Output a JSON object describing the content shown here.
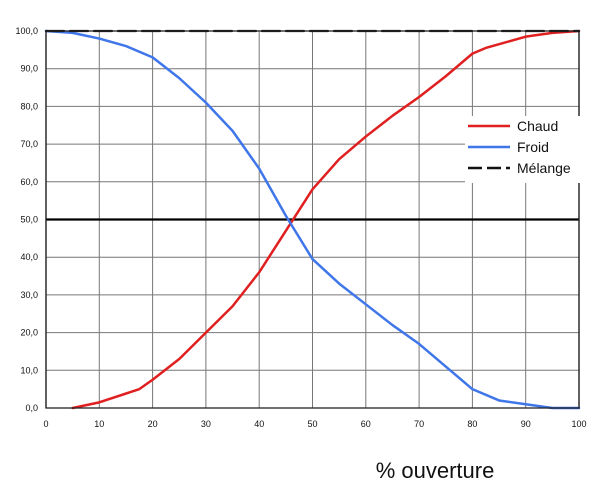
{
  "chart_data": {
    "type": "line",
    "title": "",
    "xlabel": "% ouverture",
    "ylabel": "",
    "xlim": [
      0,
      100
    ],
    "ylim": [
      0,
      100
    ],
    "x_ticks": [
      0,
      10,
      20,
      30,
      40,
      50,
      60,
      70,
      80,
      90,
      100
    ],
    "x_tick_labels": [
      "0",
      "10",
      "20",
      "30",
      "40",
      "50",
      "60",
      "70",
      "80",
      "90",
      "100"
    ],
    "y_ticks": [
      0,
      10,
      20,
      30,
      40,
      50,
      60,
      70,
      80,
      90,
      100
    ],
    "y_tick_labels": [
      "0,0",
      "10,0",
      "20,0",
      "30,0",
      "40,0",
      "50,0",
      "60,0",
      "70,0",
      "80,0",
      "90,0",
      "100,0"
    ],
    "grid": true,
    "emphasized_reference_lines": [
      50
    ],
    "legend_position": "right",
    "series": [
      {
        "name": "Chaud",
        "color": "#e02020",
        "line_style": "solid",
        "x": [
          5,
          10,
          17.5,
          20,
          25,
          30,
          35,
          40,
          45,
          50,
          55,
          60,
          65,
          70,
          75,
          80,
          82.5,
          85,
          90,
          95,
          100
        ],
        "y": [
          0,
          1.5,
          5,
          7.5,
          13,
          20,
          27,
          36,
          47,
          58,
          66,
          72,
          77.5,
          82.5,
          88,
          94,
          95.5,
          96.5,
          98.5,
          99.5,
          100
        ]
      },
      {
        "name": "Froid",
        "color": "#3f76ea",
        "line_style": "solid",
        "x": [
          0,
          5,
          10,
          15,
          20,
          25,
          30,
          35,
          40,
          45,
          50,
          55,
          60,
          65,
          70,
          75,
          80,
          85,
          90,
          95,
          100
        ],
        "y": [
          100,
          99.5,
          98,
          96,
          93,
          87.5,
          81,
          73.5,
          63.5,
          51,
          39.5,
          33,
          27.5,
          22,
          17,
          11,
          5,
          2,
          1,
          0,
          0
        ]
      },
      {
        "name": "Mélange",
        "color": "#111111",
        "line_style": "dashed",
        "x": [
          0,
          100
        ],
        "y": [
          100,
          100
        ]
      }
    ]
  }
}
